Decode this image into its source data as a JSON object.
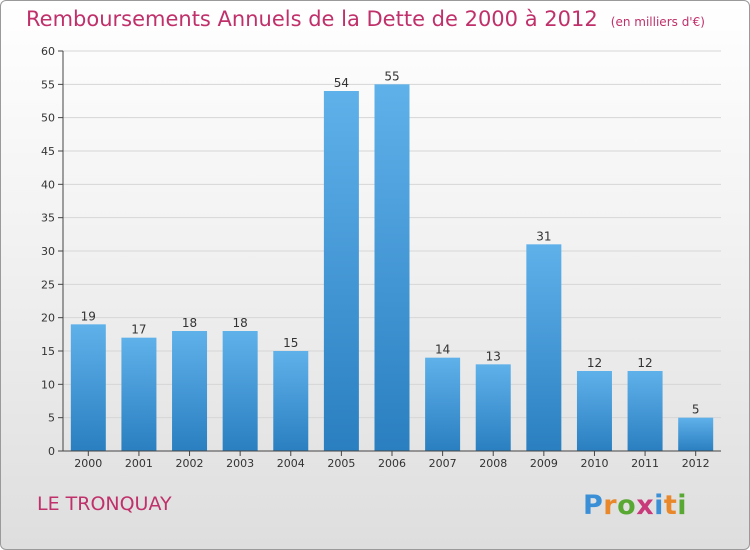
{
  "title": "Remboursements Annuels de la Dette de 2000 à 2012",
  "unit_note": "(en milliers d'€)",
  "commune": "LE TRONQUAY",
  "logo": {
    "text": "Proxiti",
    "letter_colors": [
      "#3a8fd6",
      "#e8882a",
      "#5aa834",
      "#c93a7a",
      "#3a8fd6",
      "#e8882a",
      "#5aa834"
    ]
  },
  "colors": {
    "bar_light": "#5fb1ea",
    "bar_dark": "#2a7fc0",
    "title": "#c0306a",
    "grid": "#d6d6d6"
  },
  "chart_data": {
    "type": "bar",
    "categories": [
      "2000",
      "2001",
      "2002",
      "2003",
      "2004",
      "2005",
      "2006",
      "2007",
      "2008",
      "2009",
      "2010",
      "2011",
      "2012"
    ],
    "values": [
      19,
      17,
      18,
      18,
      15,
      54,
      55,
      14,
      13,
      31,
      12,
      12,
      5
    ],
    "ylim": [
      0,
      60
    ],
    "yticks": [
      0,
      5,
      10,
      15,
      20,
      25,
      30,
      35,
      40,
      45,
      50,
      55,
      60
    ],
    "grid": true,
    "title": "Remboursements Annuels de la Dette de 2000 à 2012",
    "xlabel": "",
    "ylabel": ""
  }
}
